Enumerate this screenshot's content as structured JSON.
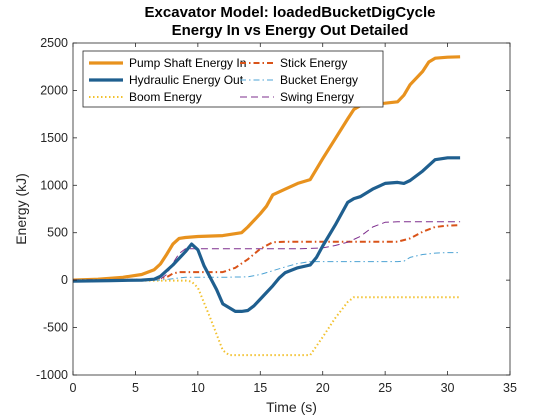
{
  "chart_data": {
    "type": "line",
    "title": "Excavator Model: loadedBucketDigCycle",
    "subtitle": "Energy In vs Energy Out Detailed",
    "xlabel": "Time (s)",
    "ylabel": "Energy (kJ)",
    "xlim": [
      0,
      35
    ],
    "ylim": [
      -1000,
      2500
    ],
    "xticks": [
      0,
      5,
      10,
      15,
      20,
      25,
      30,
      35
    ],
    "yticks": [
      -1000,
      -500,
      0,
      500,
      1000,
      1500,
      2000,
      2500
    ],
    "grid": false,
    "legend_position": "top-left",
    "series": [
      {
        "name": "Pump Shaft Energy In",
        "color": "#e8921e",
        "style": "solid-thick",
        "x": [
          0,
          2,
          4,
          5.5,
          6.5,
          7,
          7.5,
          8,
          8.5,
          9,
          10,
          12,
          13.5,
          14,
          15,
          15.5,
          16,
          17,
          18,
          19,
          20,
          21,
          22,
          22.5,
          23,
          24,
          25,
          26,
          26.5,
          27,
          28,
          28.5,
          29,
          30,
          31
        ],
        "y": [
          0,
          10,
          30,
          60,
          110,
          170,
          270,
          380,
          440,
          450,
          460,
          470,
          500,
          560,
          700,
          780,
          900,
          960,
          1020,
          1060,
          1280,
          1490,
          1700,
          1800,
          1840,
          1860,
          1865,
          1880,
          1950,
          2060,
          2200,
          2300,
          2340,
          2350,
          2355
        ]
      },
      {
        "name": "Hydraulic Energy Out",
        "color": "#1f5f8f",
        "style": "solid-thick",
        "x": [
          0,
          3,
          5.5,
          6.5,
          7,
          8,
          9,
          9.5,
          10,
          10.5,
          11.5,
          12,
          13,
          13.5,
          14,
          14.5,
          15,
          15.5,
          16,
          16.5,
          17,
          18,
          19,
          19.5,
          20,
          21,
          22,
          22.5,
          23,
          24,
          25,
          26,
          26.5,
          27,
          28,
          29,
          30,
          31
        ],
        "y": [
          -10,
          -5,
          0,
          10,
          40,
          160,
          300,
          380,
          320,
          150,
          -100,
          -250,
          -330,
          -330,
          -320,
          -270,
          -200,
          -130,
          -60,
          20,
          80,
          130,
          160,
          240,
          360,
          580,
          820,
          860,
          880,
          960,
          1020,
          1030,
          1020,
          1050,
          1150,
          1270,
          1290,
          1290
        ]
      },
      {
        "name": "Boom Energy",
        "color": "#f2c12e",
        "style": "dotted",
        "x": [
          0,
          6,
          9,
          9.5,
          10,
          11,
          12,
          12.5,
          14,
          18,
          19,
          20,
          21,
          22,
          22.5,
          25,
          28,
          31
        ],
        "y": [
          0,
          -5,
          -5,
          -15,
          -80,
          -400,
          -740,
          -790,
          -790,
          -790,
          -790,
          -600,
          -400,
          -230,
          -180,
          -180,
          -180,
          -180
        ]
      },
      {
        "name": "Stick Energy",
        "color": "#d95319",
        "style": "dash-dot-thick",
        "x": [
          0,
          6,
          7.5,
          8,
          8.5,
          12,
          13,
          14,
          15,
          16,
          17,
          18,
          20,
          22,
          24,
          26,
          27,
          28,
          29,
          30,
          31
        ],
        "y": [
          0,
          5,
          30,
          70,
          85,
          85,
          130,
          220,
          330,
          400,
          405,
          405,
          405,
          405,
          405,
          405,
          440,
          510,
          560,
          575,
          580
        ]
      },
      {
        "name": "Bucket Energy",
        "color": "#4da3d4",
        "style": "dash-dot",
        "x": [
          0,
          7,
          8,
          9,
          12,
          14,
          15,
          16,
          17,
          18,
          19,
          20,
          25,
          26,
          26.5,
          27,
          28,
          29,
          30,
          31
        ],
        "y": [
          0,
          0,
          15,
          30,
          30,
          35,
          60,
          100,
          140,
          175,
          195,
          195,
          195,
          195,
          200,
          240,
          270,
          285,
          290,
          290
        ]
      },
      {
        "name": "Swing Energy",
        "color": "#7e2f8e",
        "style": "dashed",
        "x": [
          0,
          5,
          7,
          7.5,
          8,
          8.5,
          9,
          10,
          12,
          18,
          20,
          21,
          22,
          23,
          24,
          25,
          26,
          27,
          28,
          29,
          30,
          31
        ],
        "y": [
          0,
          0,
          10,
          60,
          180,
          280,
          330,
          330,
          330,
          330,
          340,
          365,
          400,
          460,
          560,
          610,
          615,
          615,
          615,
          615,
          615,
          615
        ]
      }
    ]
  }
}
